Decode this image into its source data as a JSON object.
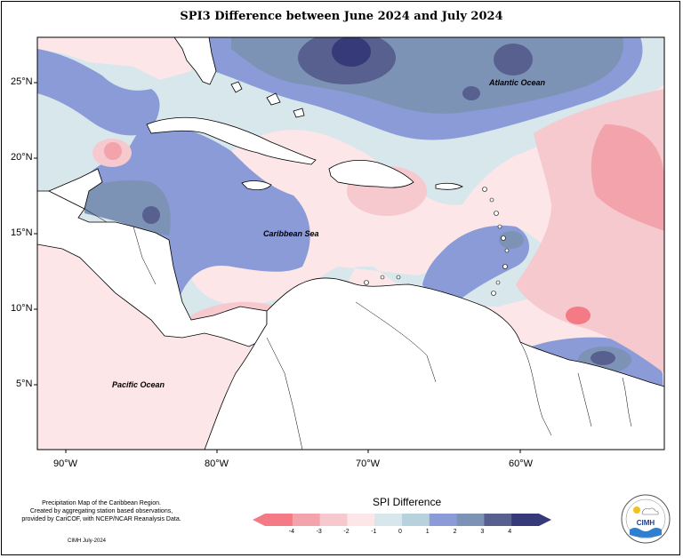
{
  "title": "SPI3 Difference between June 2024 and July 2024",
  "axes": {
    "lat_labels": [
      "25°N",
      "20°N",
      "15°N",
      "10°N",
      "5°N"
    ],
    "lon_labels": [
      "90°W",
      "80°W",
      "70°W",
      "60°W"
    ]
  },
  "place_labels": {
    "atlantic": "Atlantic Ocean",
    "caribbean": "Caribbean Sea",
    "pacific": "Pacific Ocean"
  },
  "credits": {
    "line1": "Precipitation Map of the Caribbean Region.",
    "line2": "Created by aggregating station based observations,",
    "line3": "provided by CariCOF, with NCEP/NCAR Reanalysis Data.",
    "date": "CIMH July-2024"
  },
  "legend": {
    "title": "SPI Difference",
    "ticks": [
      "-4",
      "-3",
      "-2",
      "-1",
      "0",
      "1",
      "2",
      "3",
      "4"
    ],
    "colors": [
      "#f47b86",
      "#f3a3ab",
      "#f5c9cd",
      "#fde6e8",
      "#d7e7ec",
      "#b7d2dc",
      "#8a9bd8",
      "#7d93b6",
      "#57608f",
      "#363a78"
    ]
  },
  "logo": {
    "text": "CIMH"
  },
  "map_colors": {
    "ocean_neutral": "#fde6e8",
    "land": "#ffffff",
    "coast": "#000000"
  }
}
